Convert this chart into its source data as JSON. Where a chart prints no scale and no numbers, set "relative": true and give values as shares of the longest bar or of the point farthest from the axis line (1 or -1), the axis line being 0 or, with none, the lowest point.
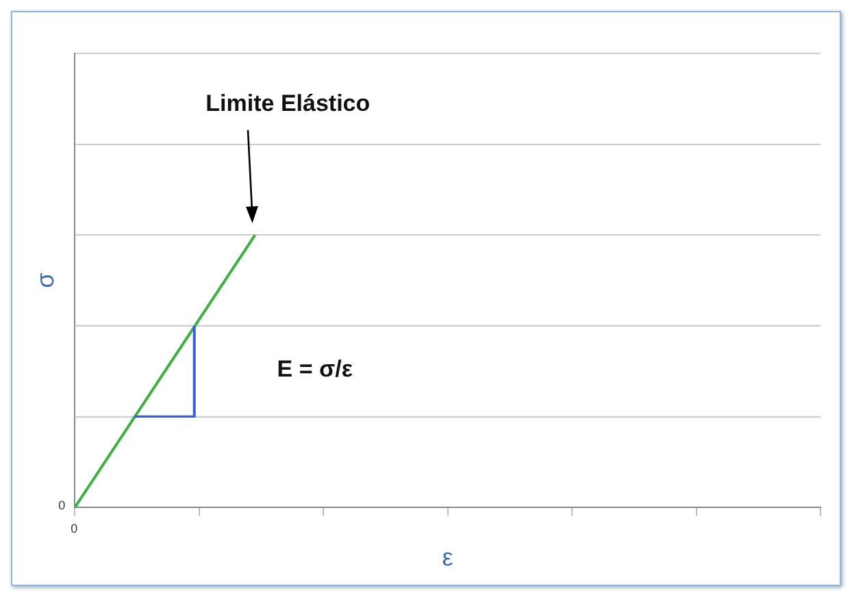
{
  "chart_data": {
    "type": "line",
    "relative": true,
    "xlabel": "ε",
    "ylabel": "σ",
    "categories": [
      null,
      null
    ],
    "series": [
      {
        "color": "#3cb043",
        "values": [
          0,
          1
        ]
      }
    ],
    "grid": "y",
    "marker": "none",
    "legend": false,
    "ref_lines": [
      {
        "axis": "y",
        "value": 0.333,
        "color": "#cccccc"
      },
      {
        "axis": "y",
        "value": 0.667,
        "color": "#cccccc"
      }
    ],
    "annotations": [
      "Limite Elástico",
      "E =  σ/ε",
      "0",
      "0"
    ]
  }
}
